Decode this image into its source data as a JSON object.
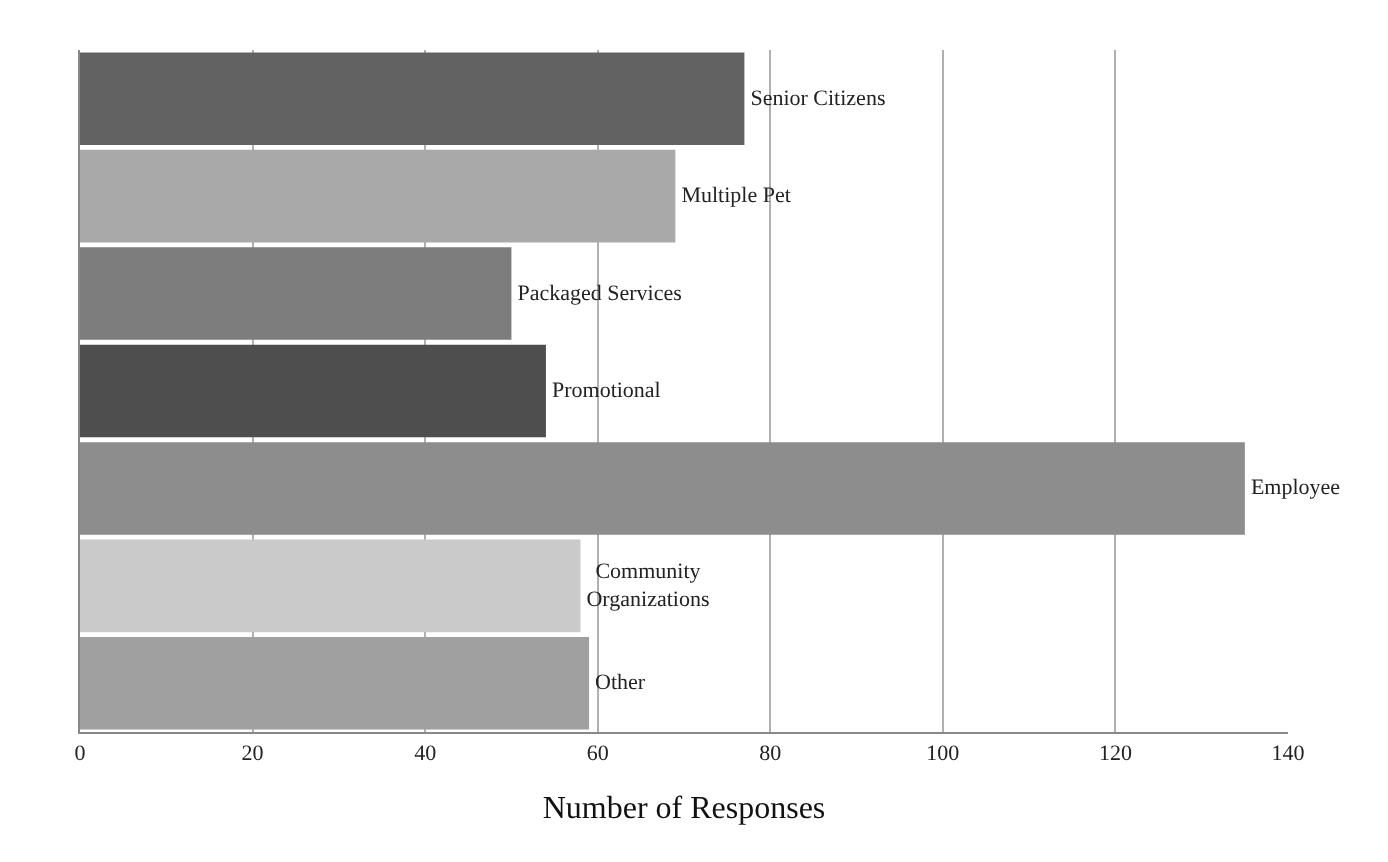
{
  "chart_data": {
    "type": "bar",
    "orientation": "horizontal",
    "xlabel": "Number of Responses",
    "categories": [
      "Senior Citizens",
      "Multiple Pet",
      "Packaged Services",
      "Promotional",
      "Employee",
      "Community\nOrganizations",
      "Other"
    ],
    "values": [
      77,
      69,
      50,
      54,
      135,
      58,
      59
    ],
    "colors": [
      "#626262",
      "#a9a9a9",
      "#7d7d7d",
      "#4e4e4e",
      "#8d8d8d",
      "#cacaca",
      "#a0a0a0"
    ],
    "xlim": [
      0,
      140
    ],
    "xticks": [
      0,
      20,
      40,
      60,
      80,
      100,
      120,
      140
    ],
    "grid": "x",
    "tick_labels": "x",
    "legend": false
  }
}
